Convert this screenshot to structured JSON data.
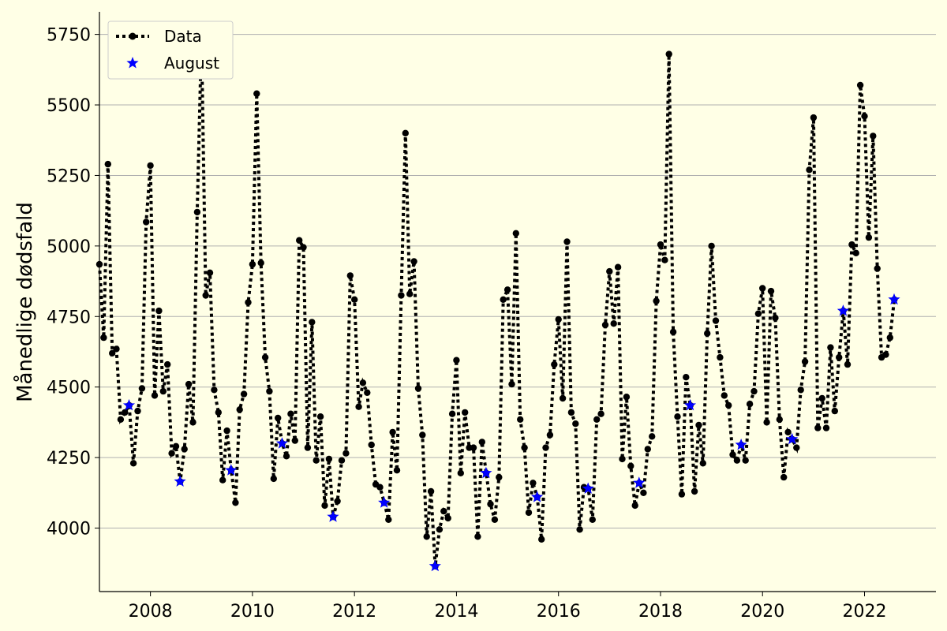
{
  "chart_data": {
    "type": "line",
    "title": "",
    "xlabel": "",
    "ylabel": "Månedlige dødsfald",
    "xlim": [
      2007.0,
      2023.4
    ],
    "ylim": [
      3775,
      5830
    ],
    "x_ticks": [
      2008,
      2010,
      2012,
      2014,
      2016,
      2018,
      2020,
      2022
    ],
    "y_ticks": [
      4000,
      4250,
      4500,
      4750,
      5000,
      5250,
      5500,
      5750
    ],
    "grid": "horizontal",
    "legend_position": "top-left",
    "colors": {
      "background": "#ffffe6",
      "data": "#000000",
      "august": "#0000ff",
      "grid": "#b0b0b0"
    },
    "series": [
      {
        "name": "Data",
        "style": "dotted-line-with-circles",
        "x_start": 2007.0,
        "x_step_months": 1,
        "values": [
          4935,
          4675,
          5290,
          4620,
          4635,
          4385,
          4410,
          4435,
          4230,
          4415,
          4495,
          5085,
          5285,
          4470,
          4770,
          4485,
          4580,
          4265,
          4290,
          4165,
          4280,
          4510,
          4375,
          5120,
          5740,
          4825,
          4905,
          4490,
          4410,
          4170,
          4345,
          4205,
          4090,
          4420,
          4475,
          4800,
          4935,
          5540,
          4940,
          4605,
          4485,
          4175,
          4390,
          4300,
          4255,
          4405,
          4310,
          5020,
          4995,
          4285,
          4730,
          4240,
          4395,
          4080,
          4245,
          4040,
          4095,
          4240,
          4265,
          4895,
          4810,
          4430,
          4515,
          4480,
          4295,
          4155,
          4145,
          4090,
          4030,
          4340,
          4205,
          4825,
          5400,
          4830,
          4945,
          4495,
          4330,
          3970,
          4130,
          3865,
          3995,
          4060,
          4035,
          4405,
          4595,
          4195,
          4410,
          4285,
          4285,
          3970,
          4305,
          4195,
          4085,
          4030,
          4180,
          4810,
          4845,
          4510,
          5045,
          4385,
          4285,
          4055,
          4160,
          4110,
          3960,
          4285,
          4330,
          4580,
          4740,
          4460,
          5015,
          4410,
          4370,
          3995,
          4145,
          4140,
          4030,
          4385,
          4405,
          4720,
          4910,
          4725,
          4925,
          4245,
          4465,
          4220,
          4080,
          4160,
          4125,
          4280,
          4325,
          4805,
          5005,
          4950,
          5680,
          4695,
          4395,
          4120,
          4535,
          4435,
          4130,
          4365,
          4230,
          4690,
          5000,
          4735,
          4605,
          4470,
          4435,
          4260,
          4240,
          4295,
          4240,
          4440,
          4485,
          4760,
          4850,
          4375,
          4840,
          4745,
          4385,
          4180,
          4340,
          4315,
          4285,
          4490,
          4590,
          5270,
          5455,
          4355,
          4460,
          4355,
          4640,
          4415,
          4605,
          4770,
          4580,
          5005,
          4975,
          5570,
          5460,
          5030,
          5390,
          4920,
          4605,
          4615,
          4675,
          4810
        ]
      },
      {
        "name": "August",
        "style": "star-markers",
        "points": [
          [
            2007.58,
            4435
          ],
          [
            2008.58,
            4165
          ],
          [
            2009.58,
            4205
          ],
          [
            2010.58,
            4300
          ],
          [
            2011.58,
            4040
          ],
          [
            2012.58,
            4090
          ],
          [
            2013.58,
            3865
          ],
          [
            2014.58,
            4195
          ],
          [
            2015.58,
            4110
          ],
          [
            2016.58,
            4140
          ],
          [
            2017.58,
            4160
          ],
          [
            2018.58,
            4435
          ],
          [
            2019.58,
            4295
          ],
          [
            2020.58,
            4315
          ],
          [
            2021.58,
            4770
          ],
          [
            2022.58,
            4810
          ]
        ]
      }
    ]
  }
}
